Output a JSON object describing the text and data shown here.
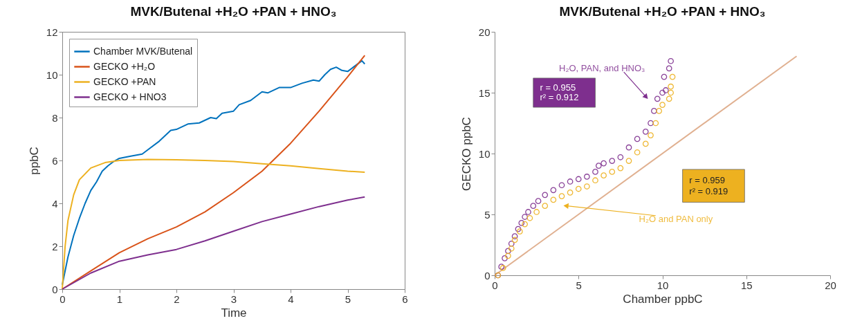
{
  "chart_data": [
    {
      "type": "line",
      "title": "MVK/Butenal +H₂O +PAN + HNO₃",
      "xlabel": "Time",
      "ylabel": "ppbC",
      "xlim": [
        0,
        6
      ],
      "ylim": [
        0,
        12
      ],
      "xticks": [
        0,
        1,
        2,
        3,
        4,
        5,
        6
      ],
      "yticks": [
        0,
        2,
        4,
        6,
        8,
        10,
        12
      ],
      "grid": false,
      "legend": "top left",
      "series": [
        {
          "name": "Chamber MVK/Butenal",
          "color": "#0072bd",
          "x": [
            0,
            0.1,
            0.2,
            0.3,
            0.4,
            0.5,
            0.6,
            0.7,
            0.8,
            0.9,
            1.0,
            1.2,
            1.4,
            1.5,
            1.7,
            1.9,
            2.0,
            2.2,
            2.4,
            2.6,
            2.7,
            2.8,
            3.0,
            3.1,
            3.3,
            3.5,
            3.6,
            3.8,
            4.0,
            4.2,
            4.4,
            4.5,
            4.6,
            4.7,
            4.8,
            4.9,
            5.0,
            5.1,
            5.25,
            5.3
          ],
          "values": [
            0.2,
            1.5,
            2.5,
            3.3,
            4.0,
            4.6,
            5.0,
            5.5,
            5.75,
            5.95,
            6.1,
            6.2,
            6.3,
            6.5,
            6.9,
            7.4,
            7.45,
            7.7,
            7.75,
            8.0,
            7.95,
            8.2,
            8.3,
            8.6,
            8.8,
            9.2,
            9.15,
            9.4,
            9.4,
            9.6,
            9.75,
            9.7,
            10.0,
            10.25,
            10.35,
            10.2,
            10.15,
            10.35,
            10.65,
            10.5
          ]
        },
        {
          "name": "GECKO +H₂O",
          "color": "#d95319",
          "x": [
            0,
            0.5,
            1,
            1.5,
            2,
            2.5,
            3,
            3.5,
            4,
            4.5,
            5,
            5.3
          ],
          "values": [
            0,
            0.85,
            1.7,
            2.35,
            2.9,
            3.6,
            4.5,
            5.5,
            6.8,
            8.3,
            9.9,
            10.9
          ]
        },
        {
          "name": "GECKO +PAN",
          "color": "#edb120",
          "x": [
            0,
            0.05,
            0.1,
            0.2,
            0.3,
            0.5,
            0.75,
            1,
            1.5,
            2,
            2.5,
            3,
            3.5,
            4,
            4.5,
            5,
            5.3
          ],
          "values": [
            0,
            2.0,
            3.2,
            4.4,
            5.1,
            5.65,
            5.9,
            6.0,
            6.05,
            6.03,
            6.0,
            5.95,
            5.85,
            5.75,
            5.62,
            5.5,
            5.45
          ]
        },
        {
          "name": "GECKO + HNO3",
          "color": "#7e2f8e",
          "x": [
            0,
            0.5,
            1,
            1.5,
            2,
            2.5,
            3,
            3.5,
            4,
            4.5,
            5,
            5.3
          ],
          "values": [
            0,
            0.75,
            1.3,
            1.6,
            1.85,
            2.25,
            2.7,
            3.15,
            3.5,
            3.85,
            4.15,
            4.3
          ]
        }
      ]
    },
    {
      "type": "scatter",
      "title": "MVK/Butenal +H₂O +PAN + HNO₃",
      "xlabel": "Chamber ppbC",
      "ylabel": "GECKO ppbC",
      "xlim": [
        0,
        20
      ],
      "ylim": [
        0,
        20
      ],
      "xticks": [
        0,
        5,
        10,
        15,
        20
      ],
      "yticks": [
        0,
        5,
        10,
        15,
        20
      ],
      "grid": false,
      "legend": false,
      "marker": "circle",
      "annotations": [
        {
          "text": "H₂O, PAN, and HNO₃",
          "x": 9.0,
          "y": 14.7
        },
        {
          "text": "H₂O and PAN only",
          "x": 4.3,
          "y": 5.7
        },
        "r = 0.955",
        "r² = 0.912",
        "r = 0.959",
        "r² = 0.919"
      ],
      "series": [
        {
          "color": "#7e2f8e",
          "x": [
            0.2,
            0.4,
            0.6,
            0.8,
            1.0,
            1.2,
            1.4,
            1.6,
            1.8,
            2.0,
            2.3,
            2.6,
            3.0,
            3.5,
            4.0,
            4.5,
            5.0,
            5.5,
            6.0,
            6.2,
            6.5,
            7.0,
            7.5,
            8.0,
            8.5,
            9.0,
            9.3,
            9.5,
            9.7,
            10.0,
            10.2,
            10.1,
            10.4,
            10.5
          ],
          "values": [
            0,
            0.7,
            1.4,
            2.0,
            2.6,
            3.2,
            3.8,
            4.3,
            4.8,
            5.2,
            5.7,
            6.1,
            6.6,
            7.0,
            7.4,
            7.7,
            7.9,
            8.1,
            8.5,
            9.0,
            9.2,
            9.4,
            9.7,
            10.5,
            11.2,
            11.8,
            12.5,
            13.5,
            14.5,
            15.0,
            15.2,
            16.3,
            17.0,
            17.6
          ]
        },
        {
          "color": "#edb120",
          "x": [
            0.2,
            0.5,
            0.8,
            1.0,
            1.2,
            1.5,
            1.8,
            2.1,
            2.5,
            3.0,
            3.5,
            4.0,
            4.5,
            5.0,
            5.5,
            6.0,
            6.5,
            7.0,
            7.5,
            8.0,
            8.5,
            9.0,
            9.3,
            9.6,
            9.8,
            10.0,
            10.4,
            10.5,
            10.5,
            10.6
          ],
          "values": [
            0,
            0.6,
            1.6,
            2.2,
            2.9,
            3.6,
            4.2,
            4.7,
            5.2,
            5.7,
            6.2,
            6.5,
            6.8,
            7.1,
            7.3,
            7.8,
            8.2,
            8.5,
            8.8,
            9.4,
            10.1,
            10.8,
            11.5,
            12.5,
            13.5,
            14.0,
            14.5,
            15.0,
            15.5,
            16.3
          ]
        },
        {
          "type": "line",
          "marker": "none",
          "color": "#e0b090",
          "x": [
            0,
            18
          ],
          "values": [
            0,
            18
          ]
        }
      ]
    }
  ]
}
